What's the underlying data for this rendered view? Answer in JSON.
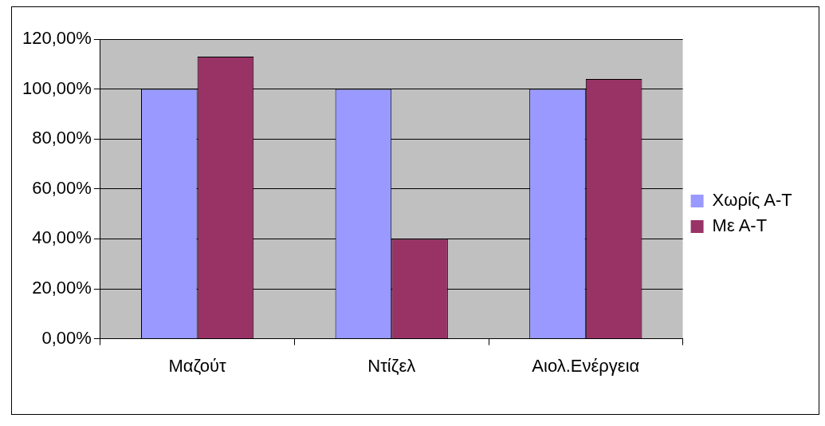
{
  "chart_data": {
    "type": "bar",
    "categories": [
      "Μαζούτ",
      "Ντίζελ",
      "Αιολ.Ενέργεια"
    ],
    "series": [
      {
        "name": "Χωρίς Α-Τ",
        "color": "#9999ff",
        "values": [
          100,
          100,
          100
        ]
      },
      {
        "name": "Με Α-Τ",
        "color": "#993366",
        "values": [
          113,
          40,
          104
        ]
      }
    ],
    "ylim": [
      0,
      120
    ],
    "yticks": [
      {
        "value": 0,
        "label": "0,00%"
      },
      {
        "value": 20,
        "label": "20,00%"
      },
      {
        "value": 40,
        "label": "40,00%"
      },
      {
        "value": 60,
        "label": "60,00%"
      },
      {
        "value": 80,
        "label": "80,00%"
      },
      {
        "value": 100,
        "label": "100,00%"
      },
      {
        "value": 120,
        "label": "120,00%"
      }
    ],
    "grid": "y",
    "legend": "right"
  }
}
